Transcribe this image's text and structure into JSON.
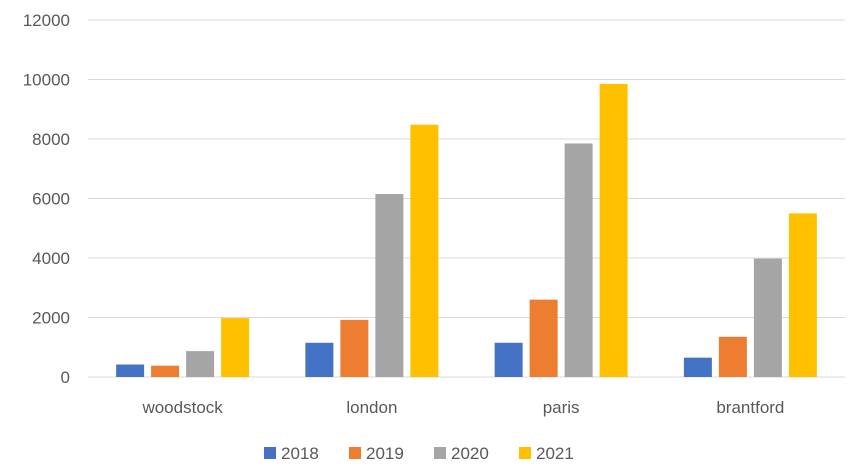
{
  "chart_data": {
    "type": "bar",
    "categories": [
      "woodstock",
      "london",
      "paris",
      "brantford"
    ],
    "series": [
      {
        "name": "2018",
        "color": "#4472C4",
        "values": [
          420,
          1150,
          1150,
          650
        ]
      },
      {
        "name": "2019",
        "color": "#ED7D31",
        "values": [
          380,
          1920,
          2600,
          1350
        ]
      },
      {
        "name": "2020",
        "color": "#A5A5A5",
        "values": [
          870,
          6150,
          7850,
          3980
        ]
      },
      {
        "name": "2021",
        "color": "#FFC000",
        "values": [
          1980,
          8480,
          9850,
          5500
        ]
      }
    ],
    "ylim": [
      0,
      12000
    ],
    "yticks": [
      "0",
      "2000",
      "4000",
      "6000",
      "8000",
      "10000",
      "12000"
    ],
    "grid": true,
    "legend_position": "bottom"
  }
}
